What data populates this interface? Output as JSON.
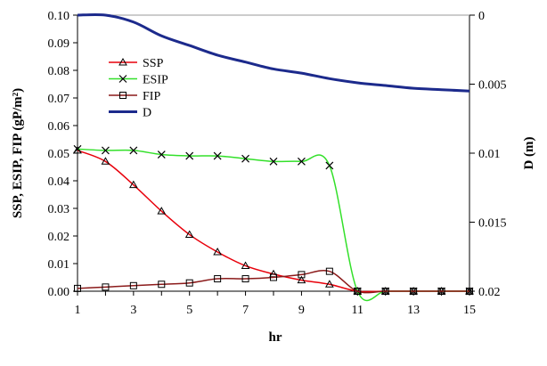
{
  "chart_data": {
    "type": "line",
    "xlabel": "hr",
    "ylabel_left": "SSP, ESIP, FIP (gP/m²)",
    "ylabel_right": "D (m)",
    "x_ticks": [
      "1",
      "3",
      "5",
      "7",
      "9",
      "11",
      "13",
      "15"
    ],
    "x": [
      1,
      2,
      3,
      4,
      5,
      6,
      7,
      8,
      9,
      10,
      11,
      12,
      13,
      14,
      15
    ],
    "xlim": [
      1,
      15
    ],
    "ylim_left": [
      0,
      0.1
    ],
    "y_ticks_left": [
      "0.00",
      "0.01",
      "0.02",
      "0.03",
      "0.04",
      "0.05",
      "0.06",
      "0.07",
      "0.08",
      "0.09",
      "0.10"
    ],
    "ylim_right": [
      0,
      0.02
    ],
    "right_axis_inverted": true,
    "y_ticks_right": [
      "0",
      "0.005",
      "0.01",
      "0.015",
      "0.02"
    ],
    "legend_placement": "upper-left",
    "grid": false,
    "series": [
      {
        "name": "SSP",
        "axis": "left",
        "color": "#e8000b",
        "marker": "triangle",
        "values": [
          0.051,
          0.047,
          0.0385,
          0.029,
          0.0205,
          0.0142,
          0.0092,
          0.0062,
          0.004,
          0.0025,
          0.0,
          0.0,
          0.0,
          0.0,
          0.0
        ]
      },
      {
        "name": "ESIP",
        "axis": "left",
        "color": "#33e02a",
        "marker": "x",
        "values": [
          0.0515,
          0.051,
          0.051,
          0.0495,
          0.049,
          0.049,
          0.048,
          0.047,
          0.047,
          0.0455,
          0.0,
          0.0,
          0.0,
          0.0,
          0.0
        ]
      },
      {
        "name": "FIP",
        "axis": "left",
        "color": "#8b1a1a",
        "marker": "square",
        "values": [
          0.001,
          0.0015,
          0.002,
          0.0025,
          0.003,
          0.0045,
          0.0045,
          0.005,
          0.006,
          0.0072,
          0.0,
          0.0,
          0.0,
          0.0,
          0.0
        ]
      },
      {
        "name": "D",
        "axis": "right",
        "color": "#1c2a8c",
        "marker": "none",
        "values": [
          0.0,
          0.0,
          0.0005,
          0.0015,
          0.0022,
          0.0029,
          0.0034,
          0.0039,
          0.0042,
          0.0046,
          0.0049,
          0.0051,
          0.0053,
          0.0054,
          0.0055
        ]
      }
    ]
  }
}
